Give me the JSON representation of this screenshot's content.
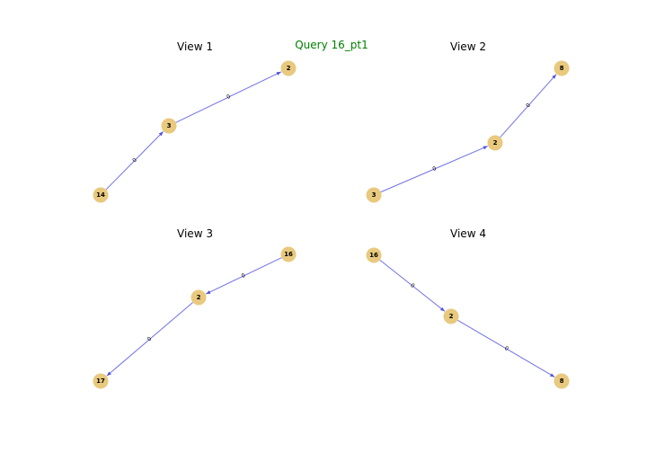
{
  "title": "Query 16_pt1",
  "colors": {
    "title": "#008000",
    "node": "#e8c97e",
    "edge": "#7070e8"
  },
  "views": [
    {
      "title": "View 1",
      "nodes": [
        {
          "id": "14"
        },
        {
          "id": "3"
        },
        {
          "id": "2"
        }
      ],
      "edges": [
        {
          "from": "14",
          "to": "3",
          "label": "0"
        },
        {
          "from": "3",
          "to": "2",
          "label": "0"
        }
      ]
    },
    {
      "title": "View 2",
      "nodes": [
        {
          "id": "3"
        },
        {
          "id": "2"
        },
        {
          "id": "8"
        }
      ],
      "edges": [
        {
          "from": "3",
          "to": "2",
          "label": "0"
        },
        {
          "from": "2",
          "to": "8",
          "label": "0"
        }
      ]
    },
    {
      "title": "View 3",
      "nodes": [
        {
          "id": "16"
        },
        {
          "id": "2"
        },
        {
          "id": "17"
        }
      ],
      "edges": [
        {
          "from": "16",
          "to": "2",
          "label": "0"
        },
        {
          "from": "2",
          "to": "17",
          "label": "0"
        }
      ]
    },
    {
      "title": "View 4",
      "nodes": [
        {
          "id": "16"
        },
        {
          "id": "2"
        },
        {
          "id": "8"
        }
      ],
      "edges": [
        {
          "from": "16",
          "to": "2",
          "label": "0"
        },
        {
          "from": "2",
          "to": "8",
          "label": "0"
        }
      ]
    }
  ]
}
